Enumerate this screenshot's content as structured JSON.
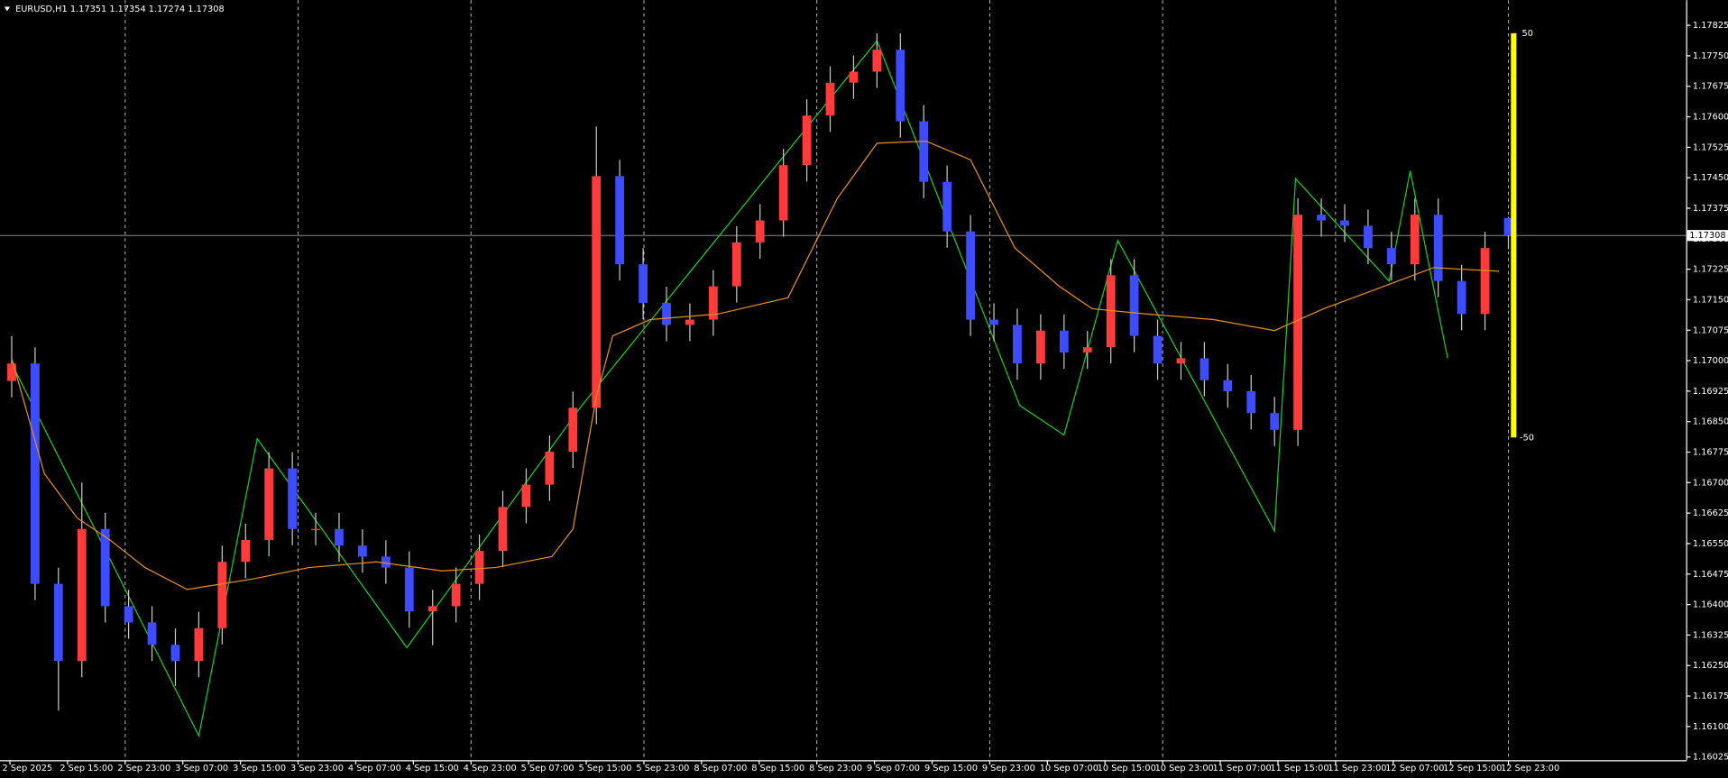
{
  "chart_data": {
    "type": "candlestick",
    "title": "EURUSD,H1  1.17351 1.17354 1.17274 1.17308",
    "bull_color": "#ff3b3b",
    "bear_color": "#3d4cff",
    "wick_color": "#c8c8c8",
    "open": [
      1.1695,
      1.16993,
      1.16451,
      1.16261,
      1.16586,
      1.16396,
      1.16356,
      1.16301,
      1.16261,
      1.16342,
      1.16505,
      1.16559,
      1.16735,
      1.16586,
      1.16586,
      1.16545,
      1.16518,
      1.16491,
      1.16383,
      1.16396,
      1.16451,
      1.16532,
      1.1664,
      1.16695,
      1.16776,
      1.16884,
      1.17454,
      1.17237,
      1.17142,
      1.17088,
      1.17101,
      1.17183,
      1.17291,
      1.17345,
      1.17481,
      1.17603,
      1.17684,
      1.17711,
      1.17765,
      1.17589,
      1.1744,
      1.17318,
      1.17101,
      1.17088,
      1.16993,
      1.17074,
      1.1702,
      1.17033,
      1.1721,
      1.17061,
      1.16993,
      1.17006,
      1.16952,
      1.16925,
      1.16871,
      1.1683,
      1.17359,
      1.17345,
      1.17332,
      1.17277,
      1.17237,
      1.17359,
      1.17196,
      1.17115,
      1.17351
    ],
    "high": [
      1.1706,
      1.17033,
      1.16491,
      1.167,
      1.16626,
      1.16436,
      1.16396,
      1.16341,
      1.16382,
      1.16545,
      1.16599,
      1.16775,
      1.16775,
      1.16626,
      1.16626,
      1.16585,
      1.16558,
      1.16531,
      1.16436,
      1.16491,
      1.16572,
      1.1668,
      1.16735,
      1.16816,
      1.16924,
      1.17576,
      1.17494,
      1.17277,
      1.17182,
      1.17141,
      1.17223,
      1.17331,
      1.17385,
      1.17521,
      1.17643,
      1.17724,
      1.17751,
      1.17805,
      1.17805,
      1.17629,
      1.1748,
      1.17358,
      1.17141,
      1.17128,
      1.17114,
      1.17114,
      1.17073,
      1.1725,
      1.1725,
      1.17101,
      1.17046,
      1.17046,
      1.16992,
      1.16965,
      1.16911,
      1.17399,
      1.17399,
      1.17385,
      1.17372,
      1.17317,
      1.17399,
      1.17399,
      1.17236,
      1.17317,
      1.17354
    ],
    "low": [
      1.1691,
      1.16411,
      1.16139,
      1.16221,
      1.16356,
      1.16316,
      1.16261,
      1.162,
      1.16221,
      1.16302,
      1.16465,
      1.16519,
      1.16546,
      1.16546,
      1.16505,
      1.16478,
      1.16451,
      1.16343,
      1.163,
      1.16356,
      1.16411,
      1.16492,
      1.166,
      1.16655,
      1.16736,
      1.16844,
      1.17197,
      1.17102,
      1.17048,
      1.17048,
      1.17061,
      1.17143,
      1.17251,
      1.17305,
      1.17441,
      1.17563,
      1.17644,
      1.17671,
      1.17549,
      1.174,
      1.17278,
      1.17061,
      1.17048,
      1.16953,
      1.16953,
      1.1698,
      1.1698,
      1.16993,
      1.17021,
      1.16953,
      1.16953,
      1.16912,
      1.16885,
      1.16831,
      1.1679,
      1.1679,
      1.17305,
      1.17292,
      1.17237,
      1.17197,
      1.17197,
      1.17156,
      1.17075,
      1.17075,
      1.17274
    ],
    "close": [
      1.16993,
      1.16451,
      1.16261,
      1.16586,
      1.16396,
      1.16356,
      1.16301,
      1.16261,
      1.16342,
      1.16505,
      1.16559,
      1.16735,
      1.16586,
      1.16586,
      1.16545,
      1.16518,
      1.16491,
      1.16383,
      1.16396,
      1.16451,
      1.16532,
      1.1664,
      1.16695,
      1.16776,
      1.16884,
      1.17454,
      1.17237,
      1.17142,
      1.17088,
      1.17101,
      1.17183,
      1.17291,
      1.17345,
      1.17481,
      1.17603,
      1.17684,
      1.17711,
      1.17765,
      1.17589,
      1.1744,
      1.17318,
      1.17101,
      1.17088,
      1.16993,
      1.17074,
      1.1702,
      1.17033,
      1.1721,
      1.17061,
      1.16993,
      1.17006,
      1.16952,
      1.16925,
      1.16871,
      1.1683,
      1.17359,
      1.17345,
      1.17332,
      1.17277,
      1.17237,
      1.17359,
      1.17196,
      1.17115,
      1.17277,
      1.17308
    ],
    "xlim": [
      -0.5,
      71.6
    ],
    "ylim": [
      1.16017,
      1.17887
    ],
    "yticks": [
      {
        "value": 1.17825,
        "label": "1.17825"
      },
      {
        "value": 1.1775,
        "label": "1.17750"
      },
      {
        "value": 1.17675,
        "label": "1.17675"
      },
      {
        "value": 1.176,
        "label": "1.17600"
      },
      {
        "value": 1.17525,
        "label": "1.17525"
      },
      {
        "value": 1.1745,
        "label": "1.17450"
      },
      {
        "value": 1.17375,
        "label": "1.17375"
      },
      {
        "value": 1.173,
        "label": "1.17300"
      },
      {
        "value": 1.17225,
        "label": "1.17225"
      },
      {
        "value": 1.1715,
        "label": "1.17150"
      },
      {
        "value": 1.17075,
        "label": "1.17075"
      },
      {
        "value": 1.17,
        "label": "1.17000"
      },
      {
        "value": 1.16925,
        "label": "1.16925"
      },
      {
        "value": 1.1685,
        "label": "1.16850"
      },
      {
        "value": 1.16775,
        "label": "1.16775"
      },
      {
        "value": 1.167,
        "label": "1.16700"
      },
      {
        "value": 1.16625,
        "label": "1.16625"
      },
      {
        "value": 1.1655,
        "label": "1.16550"
      },
      {
        "value": 1.16475,
        "label": "1.16475"
      },
      {
        "value": 1.164,
        "label": "1.16400"
      },
      {
        "value": 1.16325,
        "label": "1.16325"
      },
      {
        "value": 1.1625,
        "label": "1.16250"
      },
      {
        "value": 1.16175,
        "label": "1.16175"
      },
      {
        "value": 1.161,
        "label": "1.16100"
      },
      {
        "value": 1.16025,
        "label": "1.16025"
      }
    ],
    "time_labels": [
      "2 Sep 2025",
      "2 Sep 15:00",
      "2 Sep 23:00",
      "3 Sep 07:00",
      "3 Sep 15:00",
      "3 Sep 23:00",
      "4 Sep 07:00",
      "4 Sep 15:00",
      "4 Sep 23:00",
      "5 Sep 07:00",
      "5 Sep 15:00",
      "5 Sep 23:00",
      "8 Sep 07:00",
      "8 Sep 15:00",
      "8 Sep 23:00",
      "9 Sep 07:00",
      "9 Sep 15:00",
      "9 Sep 23:00",
      "10 Sep 07:00",
      "10 Sep 15:00",
      "10 Sep 23:00",
      "11 Sep 07:00",
      "11 Sep 15:00",
      "11 Sep 23:00",
      "12 Sep 07:00",
      "12 Sep 15:00",
      "12 Sep 23:00"
    ],
    "current_price": 1.17308,
    "ma": {
      "color": "#e8901a",
      "x": [
        0,
        1.4,
        2.8,
        4.2,
        5.7,
        7.5,
        10.4,
        12.7,
        15.6,
        18.4,
        20.7,
        23.1,
        24.0,
        24.5,
        25.0,
        25.7,
        27.3,
        30.2,
        33.2,
        35.3,
        37.0,
        39.1,
        41.0,
        42.9,
        44.8,
        46.2,
        48.5,
        51.4,
        54.0,
        56.1,
        58.4,
        60.8,
        63.6
      ],
      "values": [
        1.17006,
        1.16722,
        1.16613,
        1.16559,
        1.16491,
        1.16437,
        1.16464,
        1.16491,
        1.16505,
        1.16483,
        1.16491,
        1.16518,
        1.16586,
        1.16749,
        1.16911,
        1.17061,
        1.17101,
        1.17115,
        1.17155,
        1.17399,
        1.17535,
        1.1754,
        1.17494,
        1.17277,
        1.17183,
        1.17128,
        1.17115,
        1.17101,
        1.17074,
        1.17128,
        1.17177,
        1.17229,
        1.1722
      ]
    },
    "zigzag": {
      "color": "#19d119",
      "x": [
        0,
        8.0,
        10.5,
        16.9,
        24.3,
        37.0,
        43.1,
        45.0,
        47.3,
        54.0,
        54.9,
        58.9,
        59.8,
        61.4
      ],
      "values": [
        1.16993,
        1.16077,
        1.16808,
        1.16294,
        1.16884,
        1.17787,
        1.1689,
        1.16817,
        1.17296,
        1.16581,
        1.17448,
        1.17196,
        1.17467,
        1.17006
      ]
    },
    "indicator": {
      "color": "#ffff00",
      "max": 50,
      "min": -50
    }
  }
}
